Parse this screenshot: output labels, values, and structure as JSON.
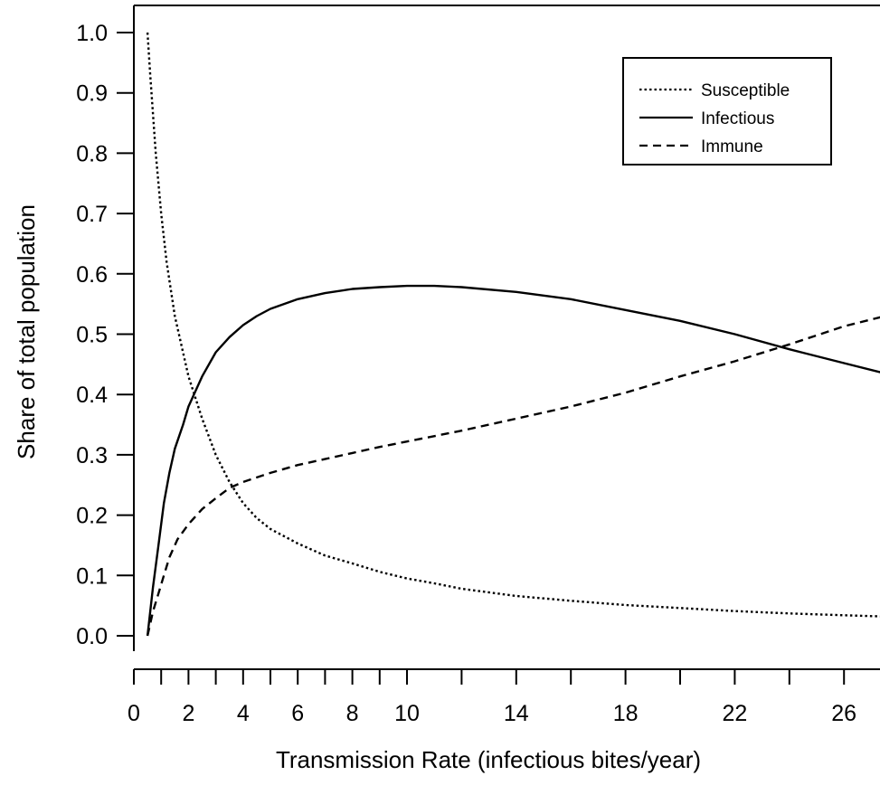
{
  "chart_data": {
    "type": "line",
    "title": "",
    "xlabel": "Transmission Rate (infectious bites/year)",
    "ylabel": "Share of total population",
    "xlim": [
      0,
      27.5
    ],
    "ylim": [
      0,
      1.0
    ],
    "x_ticks": [
      0,
      1,
      2,
      3,
      4,
      5,
      6,
      7,
      8,
      9,
      10,
      12,
      14,
      16,
      18,
      20,
      22,
      24,
      26
    ],
    "x_tick_labels": [
      {
        "value": 0,
        "label": "0"
      },
      {
        "value": 2,
        "label": "2"
      },
      {
        "value": 4,
        "label": "4"
      },
      {
        "value": 6,
        "label": "6"
      },
      {
        "value": 8,
        "label": "8"
      },
      {
        "value": 10,
        "label": "10"
      },
      {
        "value": 14,
        "label": "14"
      },
      {
        "value": 18,
        "label": "18"
      },
      {
        "value": 22,
        "label": "22"
      },
      {
        "value": 26,
        "label": "26"
      }
    ],
    "y_ticks": [
      {
        "value": 0.0,
        "label": "0.0"
      },
      {
        "value": 0.1,
        "label": "0.1"
      },
      {
        "value": 0.2,
        "label": "0.2"
      },
      {
        "value": 0.3,
        "label": "0.3"
      },
      {
        "value": 0.4,
        "label": "0.4"
      },
      {
        "value": 0.5,
        "label": "0.5"
      },
      {
        "value": 0.6,
        "label": "0.6"
      },
      {
        "value": 0.7,
        "label": "0.7"
      },
      {
        "value": 0.8,
        "label": "0.8"
      },
      {
        "value": 0.9,
        "label": "0.9"
      },
      {
        "value": 1.0,
        "label": "1.0"
      }
    ],
    "grid": false,
    "legend_position": "top-right",
    "series": [
      {
        "name": "Susceptible",
        "style": "dotted",
        "color": "#000000",
        "points": [
          [
            0.5,
            1.0
          ],
          [
            0.6,
            0.93
          ],
          [
            0.8,
            0.8
          ],
          [
            1.0,
            0.7
          ],
          [
            1.2,
            0.62
          ],
          [
            1.5,
            0.53
          ],
          [
            2.0,
            0.43
          ],
          [
            2.5,
            0.36
          ],
          [
            3.0,
            0.3
          ],
          [
            3.5,
            0.255
          ],
          [
            4.0,
            0.22
          ],
          [
            4.5,
            0.195
          ],
          [
            5.0,
            0.177
          ],
          [
            6.0,
            0.153
          ],
          [
            7.0,
            0.133
          ],
          [
            8.0,
            0.12
          ],
          [
            9.0,
            0.106
          ],
          [
            10.0,
            0.095
          ],
          [
            11.0,
            0.087
          ],
          [
            12.0,
            0.078
          ],
          [
            14.0,
            0.066
          ],
          [
            16.0,
            0.058
          ],
          [
            18.0,
            0.051
          ],
          [
            20.0,
            0.046
          ],
          [
            22.0,
            0.041
          ],
          [
            24.0,
            0.037
          ],
          [
            26.0,
            0.034
          ],
          [
            27.5,
            0.032
          ]
        ]
      },
      {
        "name": "Infectious",
        "style": "solid",
        "color": "#000000",
        "points": [
          [
            0.5,
            0.0
          ],
          [
            0.7,
            0.08
          ],
          [
            0.9,
            0.15
          ],
          [
            1.1,
            0.22
          ],
          [
            1.3,
            0.27
          ],
          [
            1.5,
            0.31
          ],
          [
            1.8,
            0.35
          ],
          [
            2.0,
            0.38
          ],
          [
            2.5,
            0.43
          ],
          [
            3.0,
            0.47
          ],
          [
            3.5,
            0.495
          ],
          [
            4.0,
            0.515
          ],
          [
            4.5,
            0.53
          ],
          [
            5.0,
            0.542
          ],
          [
            6.0,
            0.558
          ],
          [
            7.0,
            0.568
          ],
          [
            8.0,
            0.575
          ],
          [
            9.0,
            0.578
          ],
          [
            10.0,
            0.58
          ],
          [
            11.0,
            0.58
          ],
          [
            12.0,
            0.578
          ],
          [
            14.0,
            0.57
          ],
          [
            16.0,
            0.558
          ],
          [
            18.0,
            0.54
          ],
          [
            20.0,
            0.522
          ],
          [
            22.0,
            0.5
          ],
          [
            24.0,
            0.475
          ],
          [
            26.0,
            0.452
          ],
          [
            27.5,
            0.435
          ]
        ]
      },
      {
        "name": "Immune",
        "style": "dashed",
        "color": "#000000",
        "points": [
          [
            0.5,
            0.0
          ],
          [
            0.7,
            0.04
          ],
          [
            0.9,
            0.07
          ],
          [
            1.1,
            0.1
          ],
          [
            1.3,
            0.13
          ],
          [
            1.6,
            0.16
          ],
          [
            2.0,
            0.185
          ],
          [
            2.5,
            0.21
          ],
          [
            3.0,
            0.228
          ],
          [
            3.5,
            0.245
          ],
          [
            4.0,
            0.255
          ],
          [
            5.0,
            0.27
          ],
          [
            6.0,
            0.283
          ],
          [
            7.0,
            0.293
          ],
          [
            8.0,
            0.303
          ],
          [
            9.0,
            0.313
          ],
          [
            10.0,
            0.322
          ],
          [
            12.0,
            0.34
          ],
          [
            14.0,
            0.36
          ],
          [
            16.0,
            0.38
          ],
          [
            18.0,
            0.403
          ],
          [
            20.0,
            0.43
          ],
          [
            22.0,
            0.455
          ],
          [
            24.0,
            0.483
          ],
          [
            26.0,
            0.513
          ],
          [
            27.5,
            0.53
          ]
        ]
      }
    ]
  }
}
